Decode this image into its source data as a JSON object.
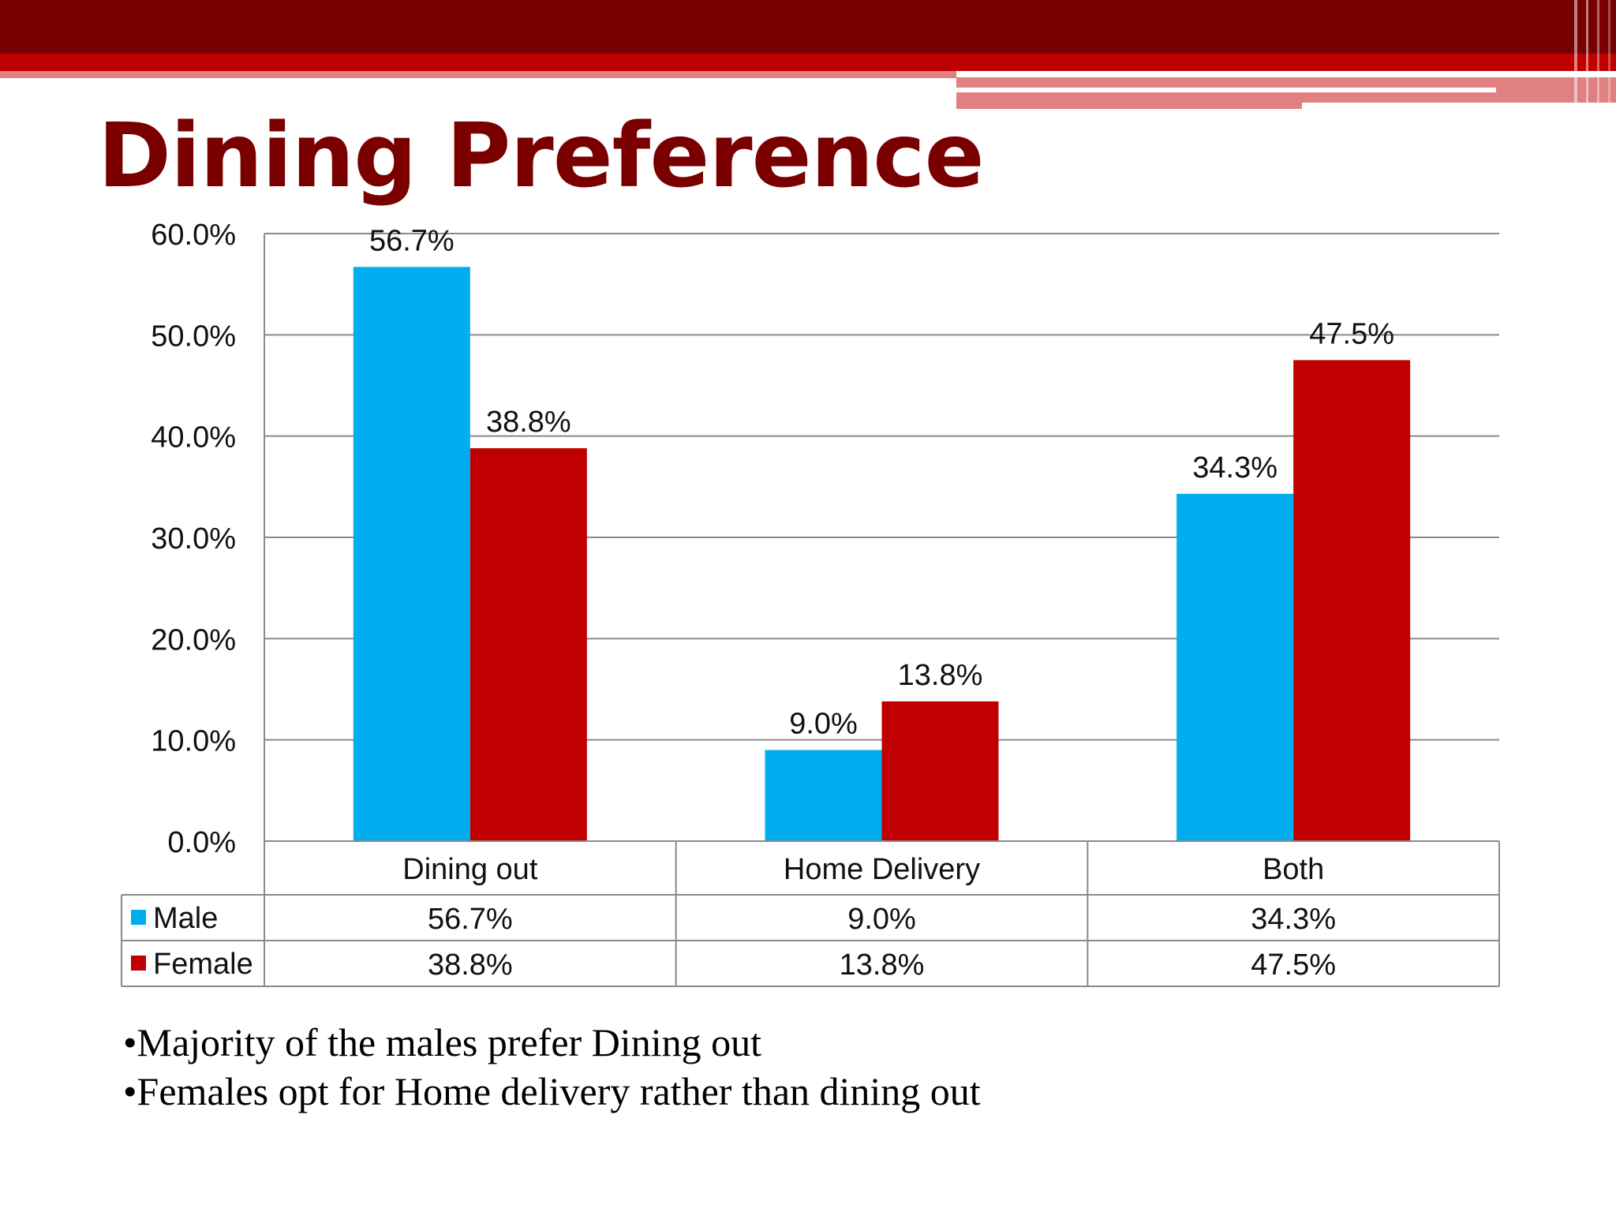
{
  "slide": {
    "title": "Dining Preference",
    "bullets": [
      "Majority of the males prefer Dining out",
      "Females opt for Home delivery rather than dining out"
    ]
  },
  "colors": {
    "male": "#00adee",
    "female": "#c00000",
    "title": "#7a0000",
    "header_dark": "#780000",
    "header_mid": "#c00000",
    "header_light": "#e08080"
  },
  "chart_data": {
    "type": "bar",
    "categories": [
      "Dining out",
      "Home Delivery",
      "Both"
    ],
    "series": [
      {
        "name": "Male",
        "values": [
          56.7,
          9.0,
          34.3
        ],
        "labels": [
          "56.7%",
          "9.0%",
          "34.3%"
        ],
        "color": "#00adee"
      },
      {
        "name": "Female",
        "values": [
          38.8,
          13.8,
          47.5
        ],
        "labels": [
          "38.8%",
          "13.8%",
          "47.5%"
        ],
        "color": "#c00000"
      }
    ],
    "ylim": [
      0,
      60
    ],
    "yticks": [
      0,
      10,
      20,
      30,
      40,
      50,
      60
    ],
    "ytick_labels": [
      "0.0%",
      "10.0%",
      "20.0%",
      "30.0%",
      "40.0%",
      "50.0%",
      "60.0%"
    ],
    "grid": true,
    "legend": "data-table"
  }
}
